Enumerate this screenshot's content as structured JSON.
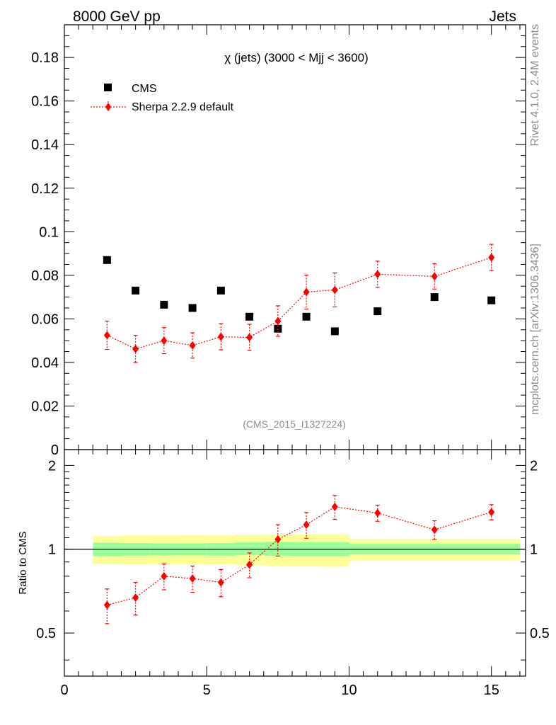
{
  "header": {
    "left": "8000 GeV pp",
    "right": "Jets"
  },
  "side_labels": {
    "rivet": "Rivet 4.1.0,  2.4M events",
    "mcplots": "mcplots.cern.ch [arXiv:1306.3436]"
  },
  "colors": {
    "data": "#000000",
    "mc": "#ff0000",
    "band_inner": "#99ff99",
    "band_outer": "#ffff99"
  },
  "chart_data": [
    {
      "type": "scatter",
      "title": "χ (jets) (3000 < Mjj < 3600)",
      "watermark": "(CMS_2015_I1327224)",
      "xlabel": "",
      "ylabel": "",
      "xlim": [
        0,
        16.2
      ],
      "ylim": [
        0,
        0.195
      ],
      "yticks": [
        0,
        0.02,
        0.04,
        0.06,
        0.08,
        0.1,
        0.12,
        0.14,
        0.16,
        0.18
      ],
      "ytick_labels": [
        "0",
        "0.02",
        "0.04",
        "0.06",
        "0.08",
        "0.1",
        "0.12",
        "0.14",
        "0.16",
        "0.18"
      ],
      "legend": [
        {
          "label": "CMS"
        },
        {
          "label": "Sherpa 2.2.9 default"
        }
      ],
      "series": [
        {
          "name": "CMS",
          "x": [
            1.5,
            2.5,
            3.5,
            4.5,
            5.5,
            6.5,
            7.5,
            8.5,
            9.5,
            11,
            13,
            15
          ],
          "values": [
            0.087,
            0.073,
            0.0665,
            0.065,
            0.073,
            0.061,
            0.0555,
            0.061,
            0.0543,
            0.0635,
            0.07,
            0.0685
          ]
        },
        {
          "name": "Sherpa 2.2.9 default",
          "x": [
            1.5,
            2.5,
            3.5,
            4.5,
            5.5,
            6.5,
            7.5,
            8.5,
            9.5,
            11,
            13,
            15
          ],
          "values": [
            0.0525,
            0.0462,
            0.05,
            0.0478,
            0.0518,
            0.0515,
            0.059,
            0.0723,
            0.0733,
            0.0805,
            0.0795,
            0.0882
          ],
          "err": [
            0.0065,
            0.0062,
            0.006,
            0.0058,
            0.006,
            0.006,
            0.007,
            0.0078,
            0.0078,
            0.006,
            0.0058,
            0.006
          ]
        }
      ]
    },
    {
      "type": "scatter",
      "title": "",
      "xlabel": "",
      "ylabel": "Ratio to CMS",
      "xlim": [
        0,
        16.2
      ],
      "ylim": [
        0.35,
        2.28
      ],
      "reference_line": 1,
      "xticks": [
        0,
        5,
        10,
        15
      ],
      "xtick_labels": [
        "0",
        "5",
        "10",
        "15"
      ],
      "yticks": [
        0.5,
        1,
        2
      ],
      "ytick_labels": [
        "0.5",
        "1",
        "2"
      ],
      "bands": {
        "x_edges": [
          1,
          2,
          3,
          4,
          5,
          6,
          7,
          8,
          9,
          10,
          12,
          14,
          16
        ],
        "inner_low": [
          0.945,
          0.948,
          0.95,
          0.95,
          0.948,
          0.952,
          0.948,
          0.945,
          0.945,
          0.96,
          0.96,
          0.96
        ],
        "inner_high": [
          1.055,
          1.052,
          1.05,
          1.05,
          1.052,
          1.058,
          1.062,
          1.06,
          1.06,
          1.045,
          1.045,
          1.045
        ],
        "outer_low": [
          0.885,
          0.883,
          0.882,
          0.88,
          0.882,
          0.875,
          0.87,
          0.868,
          0.865,
          0.91,
          0.91,
          0.91
        ],
        "outer_high": [
          1.115,
          1.12,
          1.12,
          1.122,
          1.12,
          1.128,
          1.13,
          1.132,
          1.132,
          1.09,
          1.09,
          1.09
        ]
      },
      "series": [
        {
          "name": "Sherpa 2.2.9 default / CMS",
          "x": [
            1.5,
            2.5,
            3.5,
            4.5,
            5.5,
            6.5,
            7.5,
            8.5,
            9.5,
            11,
            13,
            15
          ],
          "values": [
            0.63,
            0.67,
            0.8,
            0.785,
            0.76,
            0.88,
            1.085,
            1.225,
            1.42,
            1.35,
            1.175,
            1.36
          ],
          "err": [
            0.09,
            0.09,
            0.085,
            0.085,
            0.085,
            0.09,
            0.14,
            0.13,
            0.14,
            0.09,
            0.09,
            0.085
          ]
        }
      ]
    }
  ]
}
